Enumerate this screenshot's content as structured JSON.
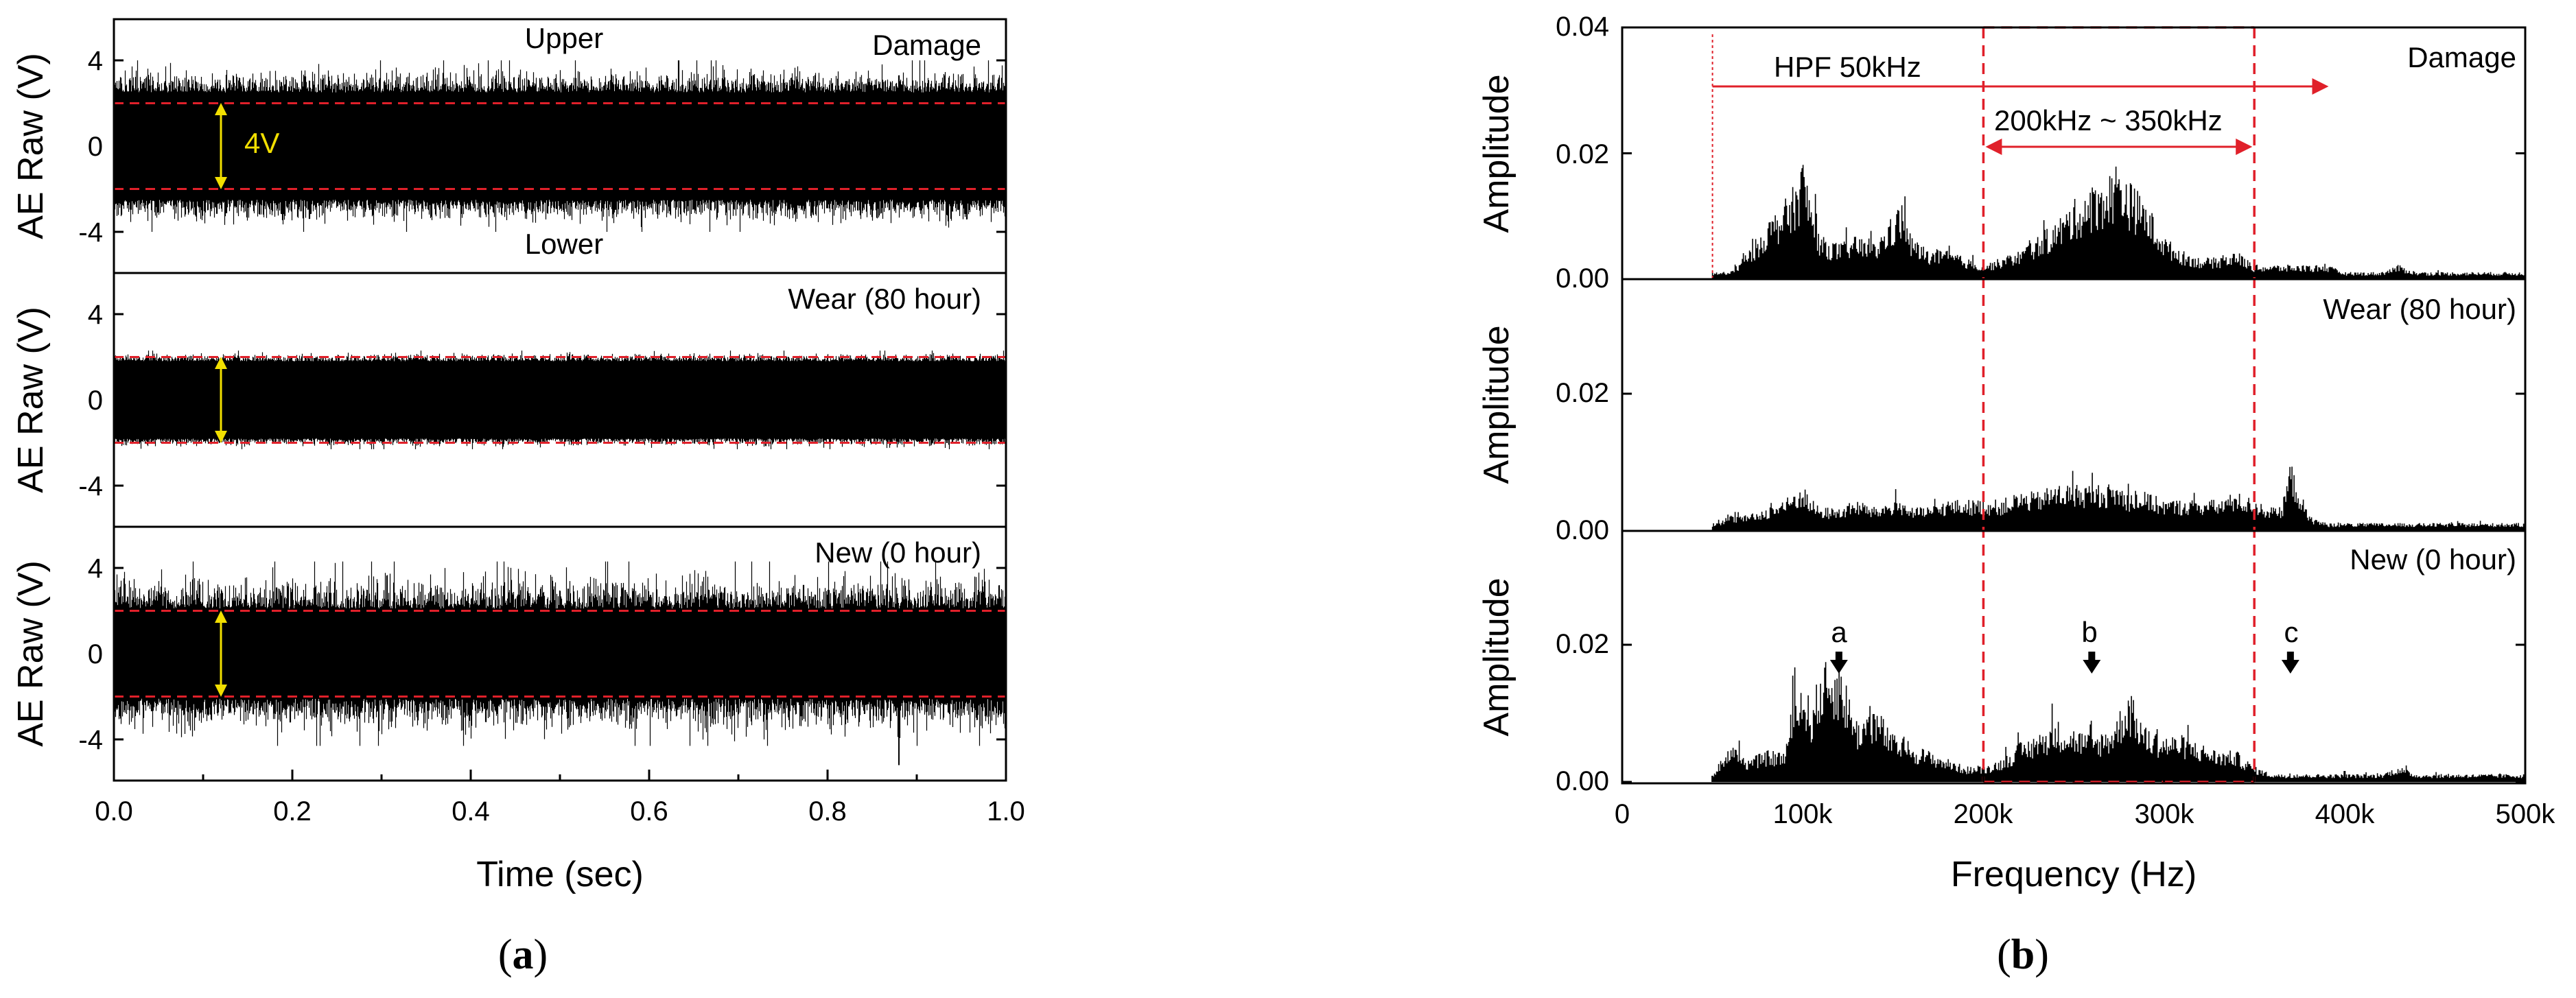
{
  "panel_a": {
    "label_prefix": "(",
    "label_letter": "a",
    "label_suffix": ")",
    "xlabel": "Time (sec)",
    "ylabel": "AE Raw (V)",
    "x_ticks": [
      "0.0",
      "0.2",
      "0.4",
      "0.6",
      "0.8",
      "1.0"
    ],
    "y_ticks": [
      "4",
      "0",
      "-4"
    ],
    "annotations": {
      "upper": "Upper",
      "lower": "Lower",
      "span": "4V"
    }
  },
  "panel_b": {
    "label_prefix": "(",
    "label_letter": "b",
    "label_suffix": ")",
    "xlabel": "Frequency (Hz)",
    "ylabel": "Amplitude",
    "x_ticks": [
      "0",
      "100k",
      "200k",
      "300k",
      "400k",
      "500k"
    ],
    "y_ticks_top": [
      "0.04",
      "0.02",
      "0.00"
    ],
    "y_ticks": [
      "0.02",
      "0.00"
    ],
    "annotations": {
      "hpf": "HPF 50kHz",
      "band": "200kHz ~ 350kHz",
      "a": "a",
      "b": "b",
      "c": "c"
    }
  },
  "conditions": [
    "Damage",
    "Wear (80 hour)",
    "New (0 hour)"
  ],
  "colors": {
    "signal": "#000000",
    "threshold": "#e0202a",
    "span_arrow": "#f2df00"
  },
  "chart_data": [
    {
      "type": "line",
      "xlabel": "Time (sec)",
      "ylabel": "AE Raw (V)",
      "xlim": [
        0,
        1.0
      ],
      "ylim": [
        -6.5,
        6.5
      ],
      "grid": false,
      "series": [
        {
          "name": "Damage",
          "envelope_peak_V": 4.0,
          "dense_amplitude_V": 2.5,
          "thresholds_V": [
            2.0,
            -2.0
          ]
        },
        {
          "name": "Wear (80 hour)",
          "envelope_peak_V": 2.3,
          "dense_amplitude_V": 1.8,
          "thresholds_V": [
            2.0,
            -2.0
          ]
        },
        {
          "name": "New (0 hour)",
          "envelope_peak_V": 4.3,
          "dense_amplitude_V": 2.1,
          "thresholds_V": [
            2.0,
            -2.0
          ],
          "spikes": [
            {
              "x": 0.88,
              "y": -5.2
            }
          ]
        }
      ]
    },
    {
      "type": "area",
      "xlabel": "Frequency (Hz)",
      "ylabel": "Amplitude",
      "xlim": [
        0,
        500000
      ],
      "ylim": [
        0,
        0.04
      ],
      "grid": false,
      "x": [
        50000,
        60000,
        70000,
        80000,
        90000,
        95000,
        100000,
        105000,
        110000,
        120000,
        130000,
        140000,
        150000,
        155000,
        160000,
        170000,
        180000,
        190000,
        200000,
        210000,
        220000,
        230000,
        240000,
        250000,
        260000,
        270000,
        275000,
        280000,
        290000,
        300000,
        310000,
        320000,
        330000,
        340000,
        350000,
        360000,
        365000,
        370000,
        380000,
        390000,
        400000,
        410000,
        420000,
        430000,
        440000,
        450000,
        460000,
        470000,
        480000,
        490000,
        500000
      ],
      "series": [
        {
          "name": "Damage",
          "values": [
            0.001,
            0.001,
            0.004,
            0.008,
            0.011,
            0.013,
            0.017,
            0.011,
            0.006,
            0.005,
            0.006,
            0.005,
            0.009,
            0.011,
            0.006,
            0.004,
            0.004,
            0.003,
            0.002,
            0.003,
            0.004,
            0.006,
            0.008,
            0.011,
            0.013,
            0.015,
            0.017,
            0.014,
            0.011,
            0.006,
            0.004,
            0.003,
            0.003,
            0.004,
            0.002,
            0.002,
            0.002,
            0.002,
            0.002,
            0.002,
            0.001,
            0.001,
            0.001,
            0.002,
            0.001,
            0.001,
            0.001,
            0.001,
            0.001,
            0.001,
            0.001
          ]
        },
        {
          "name": "Wear (80 hour)",
          "values": [
            0.001,
            0.002,
            0.002,
            0.003,
            0.004,
            0.005,
            0.006,
            0.004,
            0.003,
            0.003,
            0.004,
            0.003,
            0.004,
            0.004,
            0.003,
            0.003,
            0.004,
            0.004,
            0.004,
            0.004,
            0.005,
            0.005,
            0.006,
            0.006,
            0.006,
            0.006,
            0.006,
            0.005,
            0.005,
            0.004,
            0.004,
            0.004,
            0.004,
            0.005,
            0.004,
            0.003,
            0.003,
            0.009,
            0.002,
            0.001,
            0.001,
            0.001,
            0.001,
            0.001,
            0.001,
            0.001,
            0.001,
            0.001,
            0.001,
            0.001,
            0.001
          ]
        },
        {
          "name": "New (0 hour)",
          "values": [
            0.001,
            0.005,
            0.003,
            0.004,
            0.004,
            0.011,
            0.013,
            0.01,
            0.015,
            0.016,
            0.008,
            0.01,
            0.006,
            0.006,
            0.005,
            0.004,
            0.003,
            0.002,
            0.002,
            0.003,
            0.005,
            0.006,
            0.008,
            0.007,
            0.006,
            0.007,
            0.009,
            0.012,
            0.007,
            0.006,
            0.006,
            0.005,
            0.004,
            0.004,
            0.002,
            0.001,
            0.001,
            0.001,
            0.001,
            0.001,
            0.001,
            0.001,
            0.001,
            0.002,
            0.001,
            0.001,
            0.001,
            0.001,
            0.001,
            0.001,
            0.001
          ]
        }
      ],
      "band_hz": [
        200000,
        350000
      ],
      "hpf_hz": 50000,
      "markers": [
        {
          "label": "a",
          "x": 120000
        },
        {
          "label": "b",
          "x": 260000
        },
        {
          "label": "c",
          "x": 370000
        }
      ]
    }
  ]
}
